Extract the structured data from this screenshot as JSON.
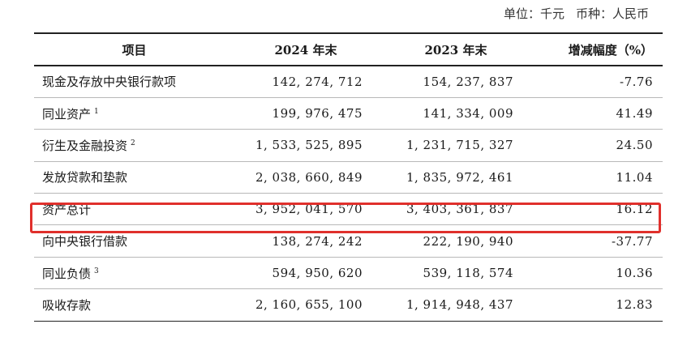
{
  "header": {
    "unit_label": "单位：千元",
    "currency_label": "币种：人民币"
  },
  "table": {
    "columns": [
      "项目",
      "2024 年末",
      "2023 年末",
      "增减幅度（%）"
    ],
    "rows": [
      {
        "item": "现金及存放中央银行款项",
        "note": "",
        "y2024": "142,274,712",
        "y2023": "154,237,837",
        "change": "-7.76"
      },
      {
        "item": "同业资产",
        "note": "1",
        "y2024": "199,976,475",
        "y2023": "141,334,009",
        "change": "41.49"
      },
      {
        "item": "衍生及金融投资",
        "note": "2",
        "y2024": "1,533,525,895",
        "y2023": "1,231,715,327",
        "change": "24.50"
      },
      {
        "item": "发放贷款和垫款",
        "note": "",
        "y2024": "2,038,660,849",
        "y2023": "1,835,972,461",
        "change": "11.04"
      },
      {
        "item": "资产总计",
        "note": "",
        "y2024": "3,952,041,570",
        "y2023": "3,403,361,837",
        "change": "16.12"
      },
      {
        "item": "向中央银行借款",
        "note": "",
        "y2024": "138,274,242",
        "y2023": "222,190,940",
        "change": "-37.77"
      },
      {
        "item": "同业负债",
        "note": "3",
        "y2024": "594,950,620",
        "y2023": "539,118,574",
        "change": "10.36"
      },
      {
        "item": "吸收存款",
        "note": "",
        "y2024": "2,160,655,100",
        "y2023": "1,914,948,437",
        "change": "12.83"
      }
    ]
  },
  "highlight": {
    "row_label": "资产总计",
    "color": "#e0302c"
  }
}
